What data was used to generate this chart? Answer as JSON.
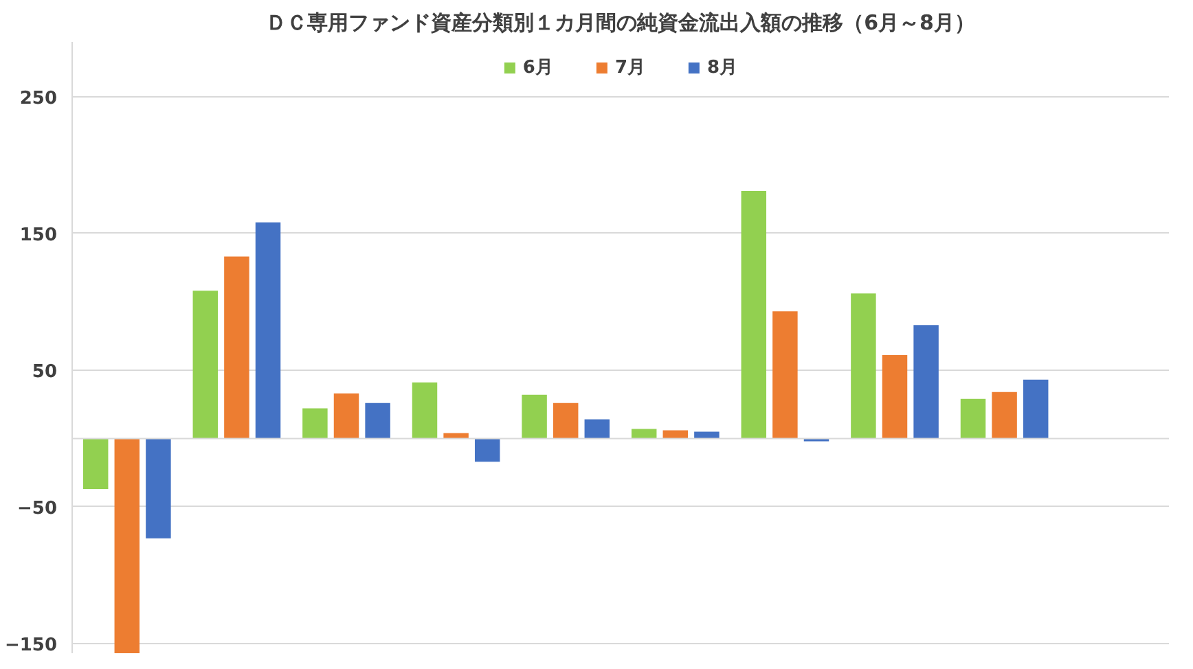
{
  "chart_data": {
    "type": "bar",
    "title": "ＤＣ専用ファンド資産分類別１カ月間の純資金流出入額の推移（6月～8月）",
    "categories": [
      null,
      null,
      null,
      null,
      null,
      null,
      null,
      null,
      null,
      null
    ],
    "series": [
      {
        "name": "6月",
        "color": "#92d050",
        "values": [
          -37,
          108,
          22,
          41,
          32,
          7,
          181,
          106,
          29,
          null
        ]
      },
      {
        "name": "7月",
        "color": "#ed7d31",
        "values": [
          -157,
          133,
          33,
          4,
          26,
          6,
          93,
          61,
          34,
          null
        ]
      },
      {
        "name": "8月",
        "color": "#4472c4",
        "values": [
          -73,
          158,
          26,
          -17,
          14,
          5,
          -2,
          83,
          43,
          null
        ]
      }
    ],
    "ylim": [
      -157,
      290
    ],
    "yticks": [
      -150,
      -50,
      50,
      150,
      250
    ],
    "grid": "y",
    "legend": "top"
  }
}
